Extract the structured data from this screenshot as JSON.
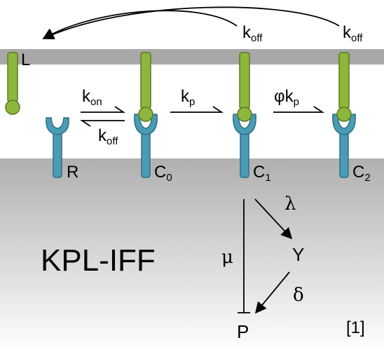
{
  "diagram": {
    "title": "KPL-IFF",
    "citation": "[1]",
    "colors": {
      "ligand": "#8DB63C",
      "ligand_edge": "#5B7A22",
      "receptor": "#4A9CB5",
      "receptor_edge": "#2E6F85",
      "membrane": "#A8A8A8",
      "cytoplasm_top": "#B0B0B0",
      "cytoplasm_bottom": "#FFFFFF",
      "arrow": "#000000"
    },
    "states": {
      "ligand": "L",
      "receptor": "R",
      "c0": {
        "base": "C",
        "sub": "0"
      },
      "c1": {
        "base": "C",
        "sub": "1"
      },
      "c2": {
        "base": "C",
        "sub": "2"
      }
    },
    "rates": {
      "kon": {
        "base": "k",
        "sub": "on"
      },
      "koff_lower": {
        "base": "k",
        "sub": "off"
      },
      "kp_first": {
        "base": "k",
        "sub": "p"
      },
      "kp_second": {
        "prefix": "φ",
        "base": "k",
        "sub": "p"
      },
      "koff_c1": {
        "base": "k",
        "sub": "off"
      },
      "koff_c2": {
        "base": "k",
        "sub": "off"
      },
      "lambda": "λ",
      "delta": "δ",
      "mu": "μ"
    },
    "species": {
      "y": "Y",
      "p": "P"
    }
  }
}
